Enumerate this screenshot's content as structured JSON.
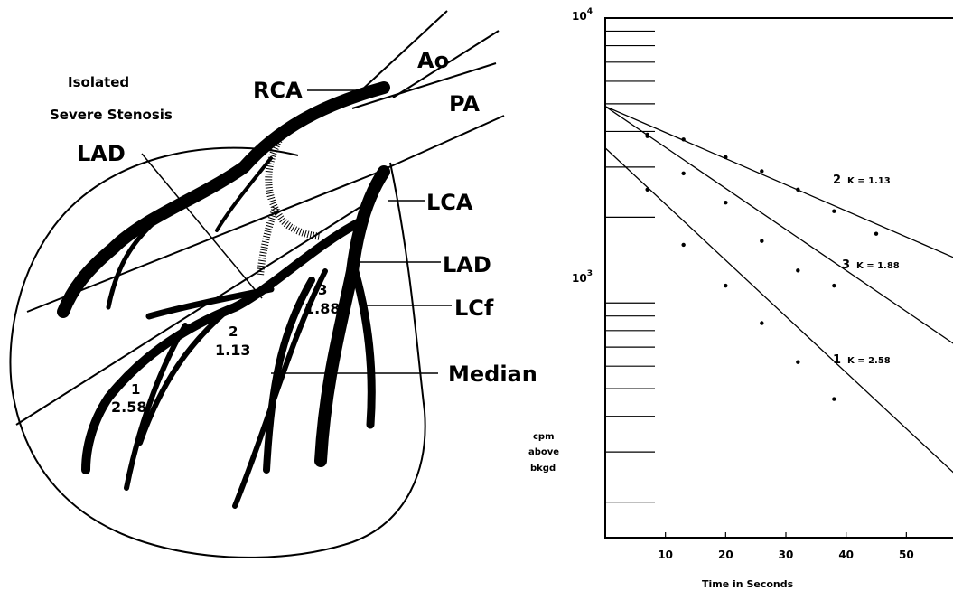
{
  "heart": {
    "title_line1": "Isolated",
    "title_line2": "Severe Stenosis",
    "lad_top": "LAD",
    "ao": "Ao",
    "rca": "RCA",
    "pa": "PA",
    "lca": "LCA",
    "lad_right": "LAD",
    "lcf": "LCf",
    "median": "Median",
    "region1_num": "1",
    "region1_val": "2.58",
    "region2_num": "2",
    "region2_val": "1.13",
    "region3_num": "3",
    "region3_val": "1.88"
  },
  "chart_data": {
    "type": "line",
    "y_scale": "log",
    "ylim": [
      150,
      10000
    ],
    "xlim": [
      0,
      60
    ],
    "y_tick_labels": [
      {
        "base": "10",
        "exp": "4",
        "value": 10000
      },
      {
        "base": "10",
        "exp": "3",
        "value": 1000
      }
    ],
    "x_ticks": [
      10,
      20,
      30,
      40,
      50
    ],
    "x_tick_labels": [
      "10",
      "20",
      "30",
      "40",
      "50"
    ],
    "xlabel": "Time in Seconds",
    "ylabel_line1": "cpm",
    "ylabel_line2": "above",
    "ylabel_line3": "bkgd",
    "series": [
      {
        "num": "2",
        "k_label": "K = 1.13",
        "line": [
          [
            0,
            4900
          ],
          [
            60,
            1380
          ]
        ],
        "points": [
          [
            7,
            3850
          ],
          [
            13,
            3750
          ],
          [
            20,
            3250
          ],
          [
            26,
            2900
          ],
          [
            32,
            2500
          ],
          [
            38,
            2100
          ],
          [
            45,
            1750
          ]
        ]
      },
      {
        "num": "3",
        "k_label": "K = 1.88",
        "line": [
          [
            0,
            4900
          ],
          [
            60,
            670
          ]
        ],
        "points": [
          [
            7,
            3900
          ],
          [
            13,
            2850
          ],
          [
            20,
            2250
          ],
          [
            26,
            1650
          ],
          [
            32,
            1300
          ],
          [
            38,
            1150
          ]
        ]
      },
      {
        "num": "1",
        "k_label": "K = 2.58",
        "line": [
          [
            0,
            3500
          ],
          [
            60,
            230
          ]
        ],
        "points": [
          [
            7,
            2500
          ],
          [
            13,
            1600
          ],
          [
            20,
            1150
          ],
          [
            26,
            850
          ],
          [
            32,
            620
          ],
          [
            38,
            460
          ]
        ]
      }
    ]
  }
}
